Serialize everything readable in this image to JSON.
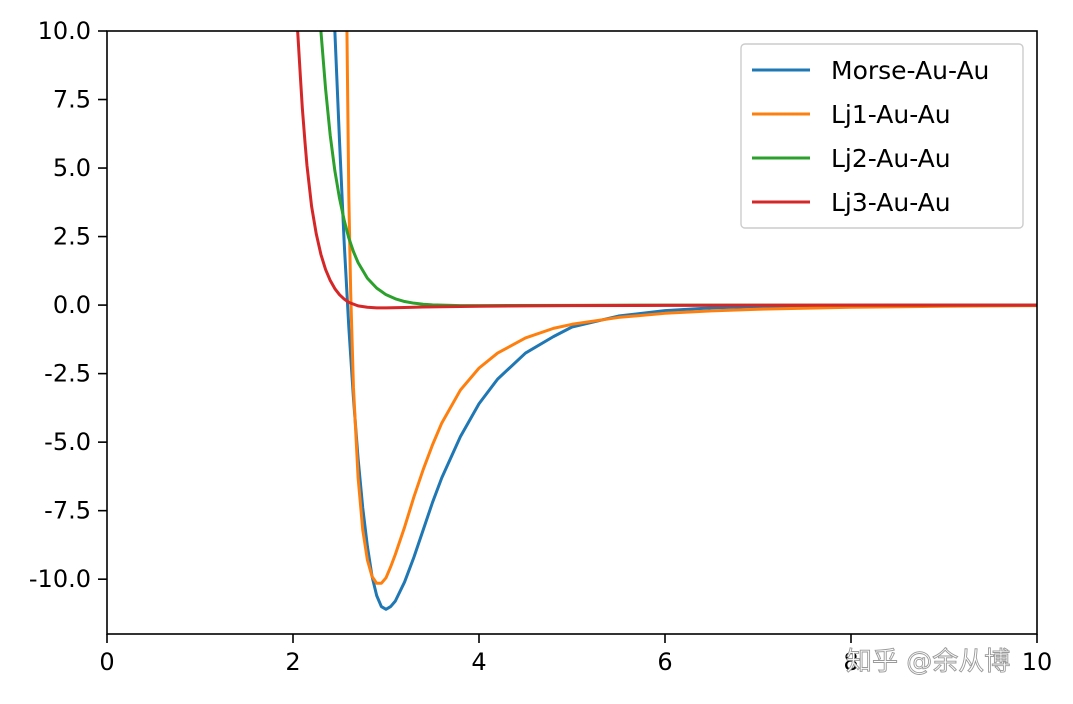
{
  "watermark": "知乎 @余从博",
  "chart_data": {
    "type": "line",
    "title": "",
    "xlabel": "",
    "ylabel": "",
    "xlim": [
      0,
      10
    ],
    "ylim": [
      -12,
      10
    ],
    "x_ticks": [
      0,
      2,
      4,
      6,
      8,
      10
    ],
    "x_tick_labels": [
      "0",
      "2",
      "4",
      "6",
      "8",
      "10"
    ],
    "y_ticks": [
      10,
      7.5,
      5,
      2.5,
      0,
      -2.5,
      -5,
      -7.5,
      -10
    ],
    "y_tick_labels": [
      "10.0",
      "7.5",
      "5.0",
      "2.5",
      "0.0",
      "-2.5",
      "-5.0",
      "-7.5",
      "-10.0"
    ],
    "grid": false,
    "legend_position": "top-right",
    "series": [
      {
        "name": "Morse-Au-Au",
        "color": "#1f77b4",
        "x": [
          2.45,
          2.5,
          2.55,
          2.6,
          2.65,
          2.7,
          2.75,
          2.8,
          2.85,
          2.9,
          2.95,
          3.0,
          3.05,
          3.1,
          3.2,
          3.3,
          3.4,
          3.5,
          3.6,
          3.8,
          4.0,
          4.2,
          4.5,
          4.8,
          5.0,
          5.5,
          6.0,
          6.5,
          7.0,
          8.0,
          9.0,
          10.0
        ],
        "y": [
          10,
          6.0,
          2.3,
          -0.8,
          -3.4,
          -5.6,
          -7.4,
          -8.8,
          -9.9,
          -10.6,
          -11.0,
          -11.1,
          -11.0,
          -10.8,
          -10.1,
          -9.2,
          -8.2,
          -7.2,
          -6.3,
          -4.8,
          -3.6,
          -2.7,
          -1.75,
          -1.15,
          -0.8,
          -0.4,
          -0.2,
          -0.1,
          -0.05,
          -0.01,
          0.0,
          0.0
        ]
      },
      {
        "name": "Lj1-Au-Au",
        "color": "#ff7f0e",
        "x": [
          2.58,
          2.6,
          2.62,
          2.65,
          2.7,
          2.75,
          2.8,
          2.85,
          2.9,
          2.95,
          3.0,
          3.05,
          3.1,
          3.2,
          3.3,
          3.4,
          3.5,
          3.6,
          3.8,
          4.0,
          4.2,
          4.5,
          4.8,
          5.0,
          5.5,
          6.0,
          6.5,
          7.0,
          8.0,
          9.0,
          10.0
        ],
        "y": [
          10,
          4.0,
          0.5,
          -3.0,
          -6.3,
          -8.2,
          -9.3,
          -9.9,
          -10.15,
          -10.15,
          -9.95,
          -9.55,
          -9.1,
          -8.1,
          -7.0,
          -6.0,
          -5.1,
          -4.3,
          -3.1,
          -2.3,
          -1.75,
          -1.2,
          -0.85,
          -0.7,
          -0.45,
          -0.3,
          -0.21,
          -0.15,
          -0.08,
          -0.04,
          -0.02
        ]
      },
      {
        "name": "Lj2-Au-Au",
        "color": "#2ca02c",
        "x": [
          2.3,
          2.35,
          2.4,
          2.45,
          2.5,
          2.55,
          2.6,
          2.65,
          2.7,
          2.8,
          2.9,
          3.0,
          3.1,
          3.2,
          3.3,
          3.4,
          3.5,
          3.6,
          3.8,
          4.0,
          5.0,
          6.0,
          8.0,
          10.0
        ],
        "y": [
          10,
          7.9,
          6.2,
          4.9,
          3.9,
          3.1,
          2.45,
          1.95,
          1.55,
          0.98,
          0.62,
          0.38,
          0.23,
          0.13,
          0.07,
          0.03,
          0.01,
          0.0,
          -0.02,
          -0.02,
          -0.01,
          0.0,
          0.0,
          0.0
        ]
      },
      {
        "name": "Lj3-Au-Au",
        "color": "#d62728",
        "x": [
          2.05,
          2.08,
          2.1,
          2.13,
          2.15,
          2.2,
          2.25,
          2.3,
          2.35,
          2.4,
          2.45,
          2.5,
          2.55,
          2.6,
          2.7,
          2.8,
          2.9,
          3.0,
          3.2,
          3.4,
          3.6,
          4.0,
          5.0,
          6.0,
          8.0,
          10.0
        ],
        "y": [
          10,
          8.3,
          7.2,
          5.9,
          5.1,
          3.6,
          2.6,
          1.85,
          1.3,
          0.9,
          0.6,
          0.38,
          0.22,
          0.1,
          -0.03,
          -0.08,
          -0.1,
          -0.1,
          -0.09,
          -0.07,
          -0.06,
          -0.04,
          -0.02,
          -0.01,
          0.0,
          0.0
        ]
      }
    ]
  }
}
